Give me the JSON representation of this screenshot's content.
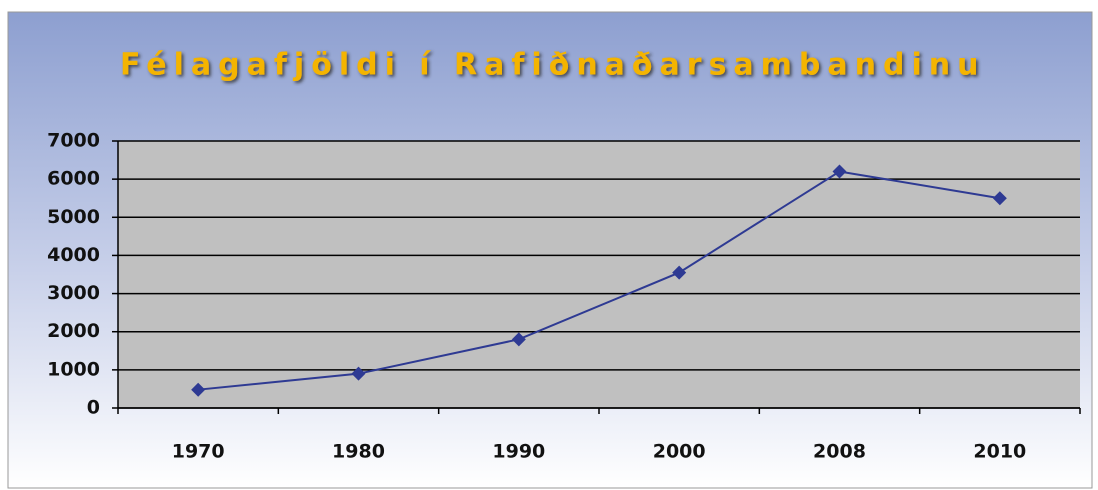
{
  "chart_data": {
    "type": "line",
    "title": "Félagafjöldi í Rafiðnaðarsambandinu",
    "categories": [
      "1970",
      "1980",
      "1990",
      "2000",
      "2008",
      "2010"
    ],
    "series": [
      {
        "name": "Félagafjöldi",
        "color": "#2e3a93",
        "values": [
          480,
          900,
          1800,
          3550,
          6200,
          5500
        ]
      }
    ],
    "ylim": [
      0,
      7000
    ],
    "yticks": [
      0,
      1000,
      2000,
      3000,
      4000,
      5000,
      6000,
      7000
    ],
    "grid": true
  }
}
